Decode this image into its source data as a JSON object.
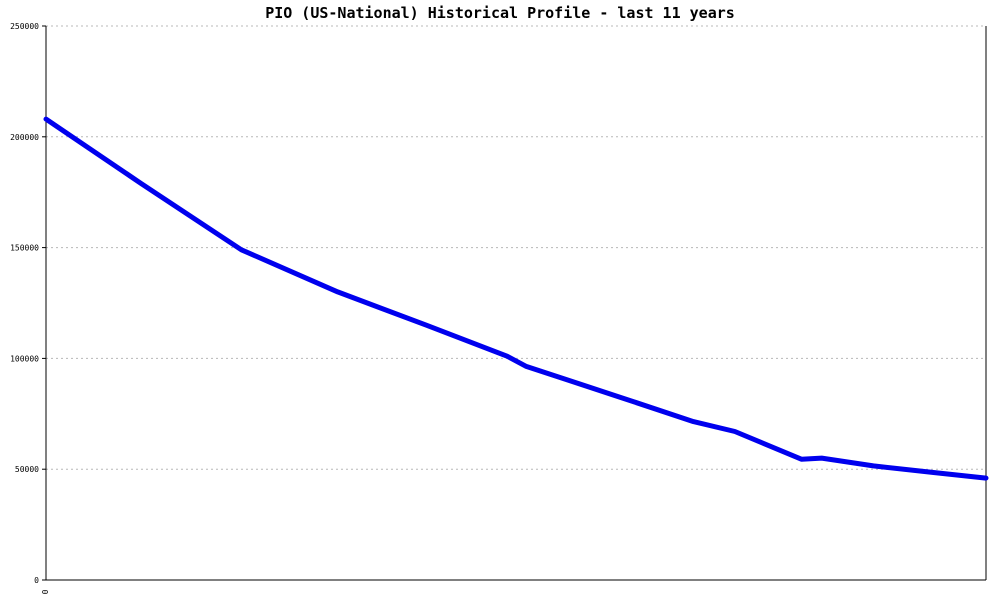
{
  "chart_data": {
    "type": "line",
    "title": "PIO (US-National) Historical Profile - last 11 years",
    "xlabel": "",
    "ylabel": "",
    "ylim": [
      0,
      250000
    ],
    "yticks": [
      0,
      50000,
      100000,
      150000,
      200000,
      250000
    ],
    "ytick_labels": [
      "0",
      "50000",
      "100000",
      "150000",
      "200000",
      "250000"
    ],
    "xtick_labels": [
      "0"
    ],
    "grid": true,
    "series": [
      {
        "color": "#0000ee",
        "values": [
          208000,
          179000,
          149000,
          130000,
          115000,
          101000,
          96500,
          82500,
          71500,
          67000,
          54500,
          55000,
          51500,
          48500,
          46000
        ]
      }
    ],
    "x": [
      0,
      0.1325,
      0.2733,
      0.4079,
      0.5319,
      0.6448,
      0.6709,
      0.8027,
      0.9053,
      0.9633,
      1.0563,
      1.0848,
      1.1571,
      1.2411,
      1.3145
    ]
  }
}
